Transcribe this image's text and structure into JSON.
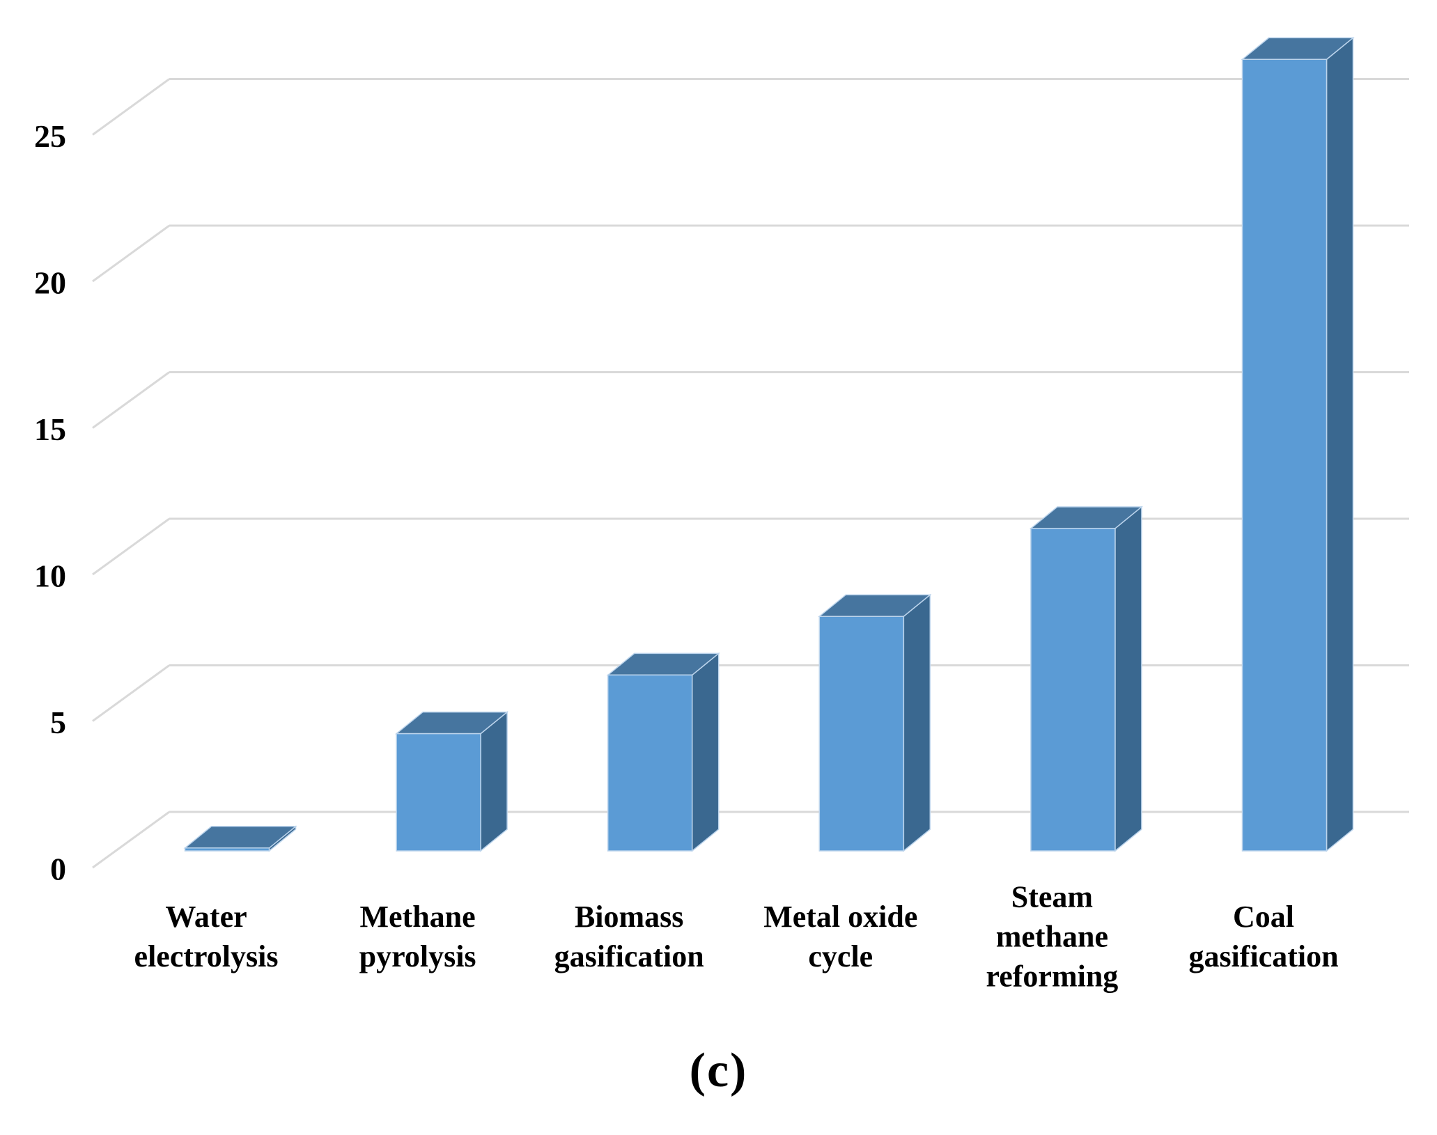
{
  "chart_data": {
    "type": "bar",
    "style": "3d-column",
    "title": "",
    "xlabel": "",
    "ylabel": "",
    "legend": "none",
    "grid": true,
    "caption": "(c)",
    "categories": [
      "Water electrolysis",
      "Methane pyrolysis",
      "Biomass gasification",
      "Metal oxide cycle",
      "Steam methane reforming",
      "Coal gasification"
    ],
    "category_lines": [
      [
        "Water",
        "electrolysis"
      ],
      [
        "Methane",
        "pyrolysis"
      ],
      [
        "Biomass",
        "gasification"
      ],
      [
        "Metal oxide",
        "cycle"
      ],
      [
        "Steam",
        "methane",
        "reforming"
      ],
      [
        "Coal",
        "gasification"
      ]
    ],
    "values": [
      0.1,
      4,
      6,
      8,
      11,
      27
    ],
    "yticks": [
      0,
      5,
      10,
      15,
      20,
      25
    ],
    "ylim": [
      0,
      27.5
    ],
    "colors": {
      "bar_front": "#5B9BD5",
      "bar_top": "#46759F",
      "bar_side": "#3A6890",
      "bar_edge": "#BCD4EC",
      "gridline": "#D9D9D9",
      "text": "#000000",
      "background": "#FFFFFF"
    }
  }
}
